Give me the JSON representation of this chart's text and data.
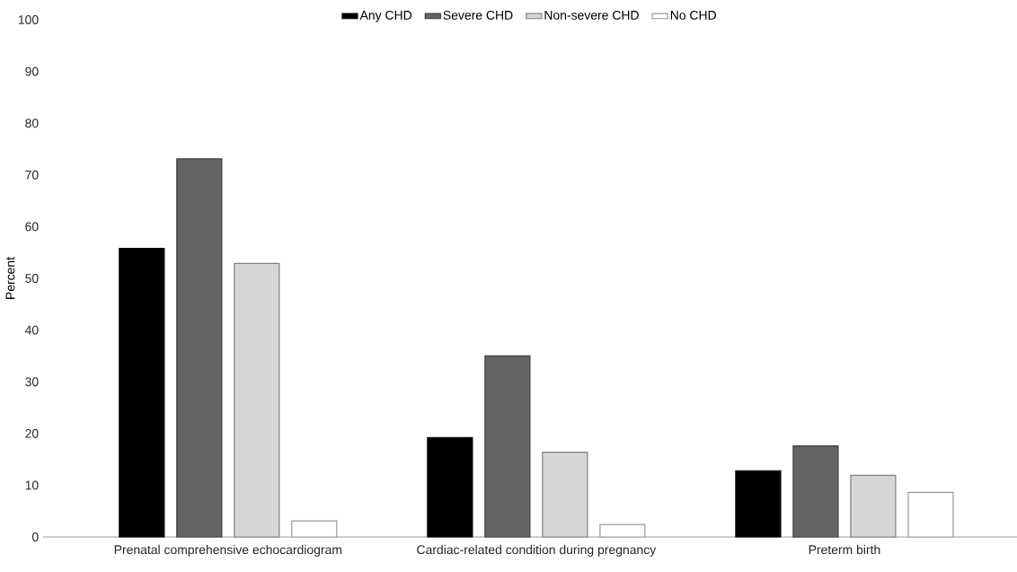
{
  "chart_data": {
    "type": "bar",
    "ylabel": "Percent",
    "categories": [
      "Prenatal comprehensive echocardiogram",
      "Cardiac-related condition during pregnancy",
      "Preterm birth"
    ],
    "series": [
      {
        "name": "Any CHD",
        "color": "#000000",
        "values": [
          55.8,
          19.2,
          12.8
        ]
      },
      {
        "name": "Severe CHD",
        "color": "#646464",
        "values": [
          73.1,
          35.0,
          17.6
        ]
      },
      {
        "name": "Non-severe CHD",
        "color": "#d6d6d6",
        "values": [
          52.9,
          16.4,
          11.9
        ]
      },
      {
        "name": "No CHD",
        "color": "#ffffff",
        "values": [
          3.1,
          2.4,
          8.6
        ]
      }
    ],
    "ylim": [
      0,
      100
    ],
    "yticks": [
      0,
      10,
      20,
      30,
      40,
      50,
      60,
      70,
      80,
      90,
      100
    ],
    "legend": "top"
  }
}
